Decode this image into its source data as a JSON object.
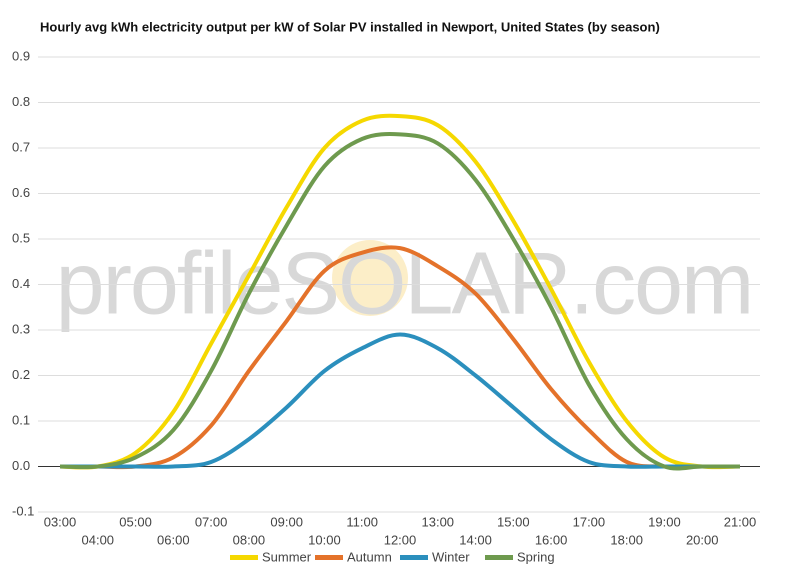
{
  "chart_data": {
    "type": "line",
    "title": "Hourly avg kWh electricity output per kW of Solar PV installed in Newport, United States (by season)",
    "watermark": "profileSOLAR.com",
    "categories": [
      "03:00",
      "04:00",
      "05:00",
      "06:00",
      "07:00",
      "08:00",
      "09:00",
      "10:00",
      "11:00",
      "12:00",
      "13:00",
      "14:00",
      "15:00",
      "16:00",
      "17:00",
      "18:00",
      "19:00",
      "20:00",
      "21:00"
    ],
    "series": [
      {
        "name": "Summer",
        "color": "#f5d800",
        "values": [
          0,
          0,
          0.03,
          0.12,
          0.27,
          0.42,
          0.57,
          0.7,
          0.76,
          0.77,
          0.75,
          0.67,
          0.54,
          0.39,
          0.23,
          0.1,
          0.02,
          0,
          0
        ]
      },
      {
        "name": "Autumn",
        "color": "#e4722a",
        "values": [
          0,
          0,
          0,
          0.02,
          0.09,
          0.21,
          0.32,
          0.43,
          0.47,
          0.48,
          0.44,
          0.38,
          0.28,
          0.17,
          0.08,
          0.01,
          0,
          0,
          0
        ]
      },
      {
        "name": "Winter",
        "color": "#2b8fbd",
        "values": [
          0,
          0,
          0,
          0,
          0.01,
          0.06,
          0.13,
          0.21,
          0.26,
          0.29,
          0.26,
          0.2,
          0.13,
          0.06,
          0.01,
          0,
          0,
          0,
          0
        ]
      },
      {
        "name": "Spring",
        "color": "#6e9a4e",
        "values": [
          0,
          0,
          0.02,
          0.08,
          0.21,
          0.38,
          0.53,
          0.66,
          0.72,
          0.73,
          0.71,
          0.63,
          0.5,
          0.35,
          0.18,
          0.06,
          0,
          0,
          0
        ]
      }
    ],
    "ylim": [
      -0.1,
      0.9
    ],
    "yticks": [
      -0.1,
      {
        "value": 0,
        "label": "0.0"
      },
      0.1,
      0.2,
      0.3,
      0.4,
      0.5,
      0.6,
      0.7,
      0.8,
      0.9
    ],
    "grid": true,
    "legend": "bottom"
  }
}
